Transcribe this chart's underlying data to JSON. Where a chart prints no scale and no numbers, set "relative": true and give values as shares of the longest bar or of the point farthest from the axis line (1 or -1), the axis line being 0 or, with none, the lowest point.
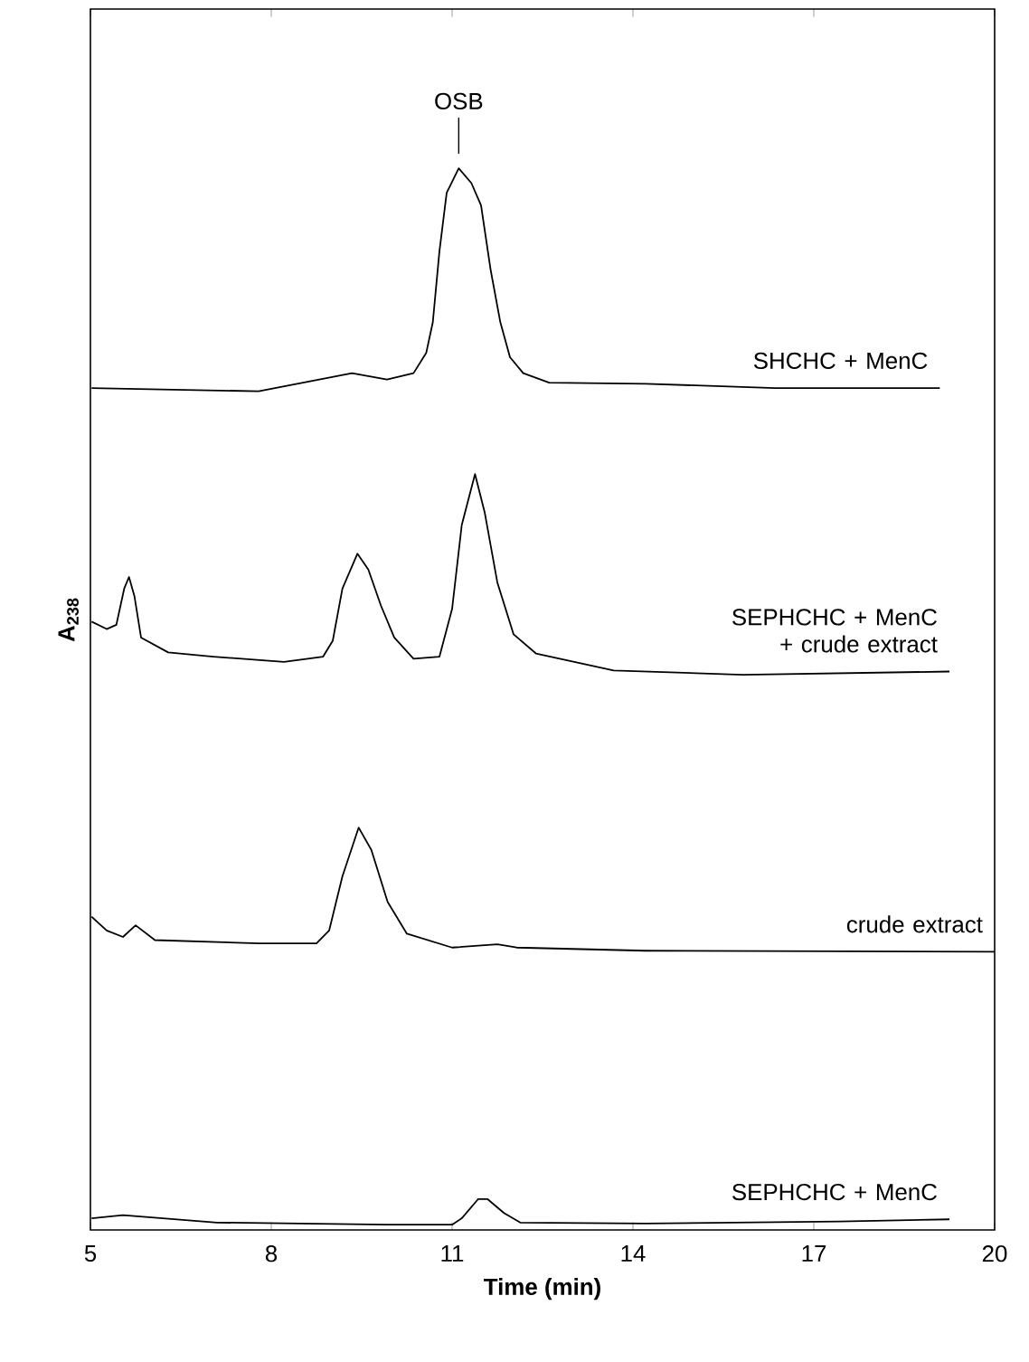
{
  "chart_data": {
    "type": "line",
    "relative": true,
    "xlabel": "Time (min)",
    "ylabel": "A$_{238}$",
    "xlim": [
      5,
      20
    ],
    "xticks": [
      5,
      8,
      11,
      14,
      17,
      20
    ],
    "annotations": [
      {
        "text": "OSB",
        "x": 11.11,
        "y": 1.0
      }
    ],
    "series": [
      {
        "name": "SHCHC + MenC",
        "color": "#000000",
        "x": [
          5.02,
          7.79,
          9.34,
          9.92,
          10.36,
          10.57,
          10.68,
          10.79,
          10.91,
          11.11,
          11.32,
          11.48,
          11.64,
          11.8,
          11.96,
          12.18,
          12.61,
          14.21,
          16.36,
          19.09
        ],
        "values": [
          0.793,
          0.79,
          0.807,
          0.801,
          0.807,
          0.826,
          0.855,
          0.922,
          0.977,
          1.0,
          0.986,
          0.965,
          0.904,
          0.855,
          0.822,
          0.807,
          0.798,
          0.797,
          0.793,
          0.793
        ]
      },
      {
        "name": "SEPHCHC + MenC + crude extract",
        "color": "#000000",
        "x": [
          5.02,
          5.27,
          5.43,
          5.56,
          5.64,
          5.73,
          5.84,
          6.29,
          7.04,
          8.21,
          8.86,
          9.02,
          9.18,
          9.43,
          9.61,
          9.82,
          10.04,
          10.36,
          10.79,
          11.0,
          11.16,
          11.38,
          11.54,
          11.75,
          12.02,
          12.39,
          13.68,
          15.82,
          19.25
        ],
        "values": [
          0.573,
          0.566,
          0.57,
          0.604,
          0.615,
          0.597,
          0.558,
          0.544,
          0.54,
          0.535,
          0.54,
          0.555,
          0.604,
          0.637,
          0.622,
          0.588,
          0.558,
          0.538,
          0.54,
          0.585,
          0.664,
          0.712,
          0.676,
          0.61,
          0.561,
          0.543,
          0.527,
          0.523,
          0.526
        ]
      },
      {
        "name": "crude extract",
        "color": "#000000",
        "x": [
          5.02,
          5.27,
          5.54,
          5.75,
          6.07,
          7.79,
          8.75,
          8.96,
          9.18,
          9.45,
          9.66,
          9.93,
          10.25,
          11.0,
          11.75,
          12.07,
          14.21,
          20.0
        ],
        "values": [
          0.295,
          0.282,
          0.276,
          0.287,
          0.273,
          0.27,
          0.27,
          0.282,
          0.333,
          0.379,
          0.358,
          0.309,
          0.279,
          0.266,
          0.269,
          0.266,
          0.263,
          0.262
        ]
      },
      {
        "name": "SEPHCHC + MenC",
        "color": "#000000",
        "x": [
          5.02,
          5.54,
          7.1,
          9.93,
          11.0,
          11.16,
          11.43,
          11.59,
          11.86,
          12.13,
          14.21,
          17.43,
          19.25
        ],
        "values": [
          0.011,
          0.014,
          0.007,
          0.005,
          0.005,
          0.011,
          0.029,
          0.029,
          0.016,
          0.007,
          0.006,
          0.008,
          0.01
        ]
      }
    ]
  }
}
